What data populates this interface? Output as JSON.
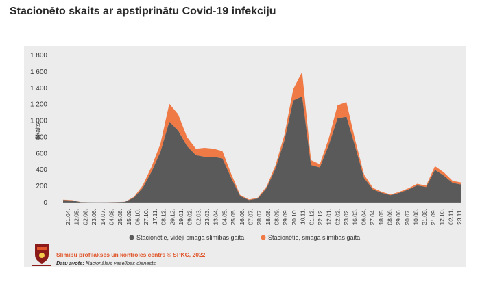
{
  "page": {
    "title": "Stacionēto skaits ar apstiprinātu Covid-19 infekciju"
  },
  "footer": {
    "organization": "Slimību profilakses un kontroles centrs © SPKC, 2022",
    "source_label": "Datu avots:",
    "source_name": "Nacionālais veselības dienests"
  },
  "colors": {
    "background": "#ececec",
    "moderate": "#5a5a5a",
    "severe": "#f07a45",
    "text": "#333333"
  },
  "chart_data": {
    "type": "area",
    "title": "Stacionēto skaits ar apstiprinātu Covid-19 infekciju",
    "ylabel": "Skaits",
    "ylim": [
      0,
      1800
    ],
    "yticks": [
      0,
      200,
      400,
      600,
      800,
      1000,
      1200,
      1400,
      1600,
      1800
    ],
    "ytick_labels": [
      "0",
      "200",
      "400",
      "600",
      "800",
      "1 000",
      "1 200",
      "1 400",
      "1 600",
      "1 800"
    ],
    "xtick_labels": [
      "21.04.",
      "12.05.",
      "02.06.",
      "23.06.",
      "14.07.",
      "04.08.",
      "25.08.",
      "15.09.",
      "06.10.",
      "27.10.",
      "17.11.",
      "08.12.",
      "29.12.",
      "19.01.",
      "09.02.",
      "02.03.",
      "23.03.",
      "13.04.",
      "04.05.",
      "25.05.",
      "16.06.",
      "07.07.",
      "28.07.",
      "18.08.",
      "08.09.",
      "29.09.",
      "20.10.",
      "10.11.",
      "01.12.",
      "22.12.",
      "12.01.",
      "02.02.",
      "23.02.",
      "16.03.",
      "06.04.",
      "27.04.",
      "18.05.",
      "08.06.",
      "29.06.",
      "20.07.",
      "10.08.",
      "31.08.",
      "21.09.",
      "12.10.",
      "02.11.",
      "23.11."
    ],
    "legend": {
      "position": "bottom"
    },
    "grid": false,
    "series": [
      {
        "name": "Stacionētie, vidēji smaga slimības gaita",
        "color": "#5a5a5a",
        "values": [
          30,
          25,
          5,
          3,
          2,
          3,
          5,
          8,
          60,
          180,
          380,
          620,
          990,
          880,
          690,
          580,
          560,
          560,
          540,
          300,
          80,
          30,
          50,
          180,
          420,
          760,
          1250,
          1300,
          460,
          430,
          700,
          1030,
          1050,
          680,
          300,
          160,
          120,
          90,
          120,
          160,
          210,
          190,
          400,
          330,
          240,
          220
        ]
      },
      {
        "name": "Stacionētie, smaga slimības gaita",
        "color": "#f07a45",
        "values": [
          5,
          5,
          1,
          1,
          1,
          1,
          1,
          2,
          10,
          30,
          60,
          100,
          220,
          200,
          110,
          80,
          110,
          100,
          90,
          50,
          15,
          8,
          10,
          20,
          40,
          70,
          140,
          300,
          60,
          40,
          80,
          160,
          180,
          80,
          40,
          20,
          12,
          10,
          12,
          15,
          20,
          18,
          45,
          40,
          25,
          25
        ]
      }
    ]
  }
}
